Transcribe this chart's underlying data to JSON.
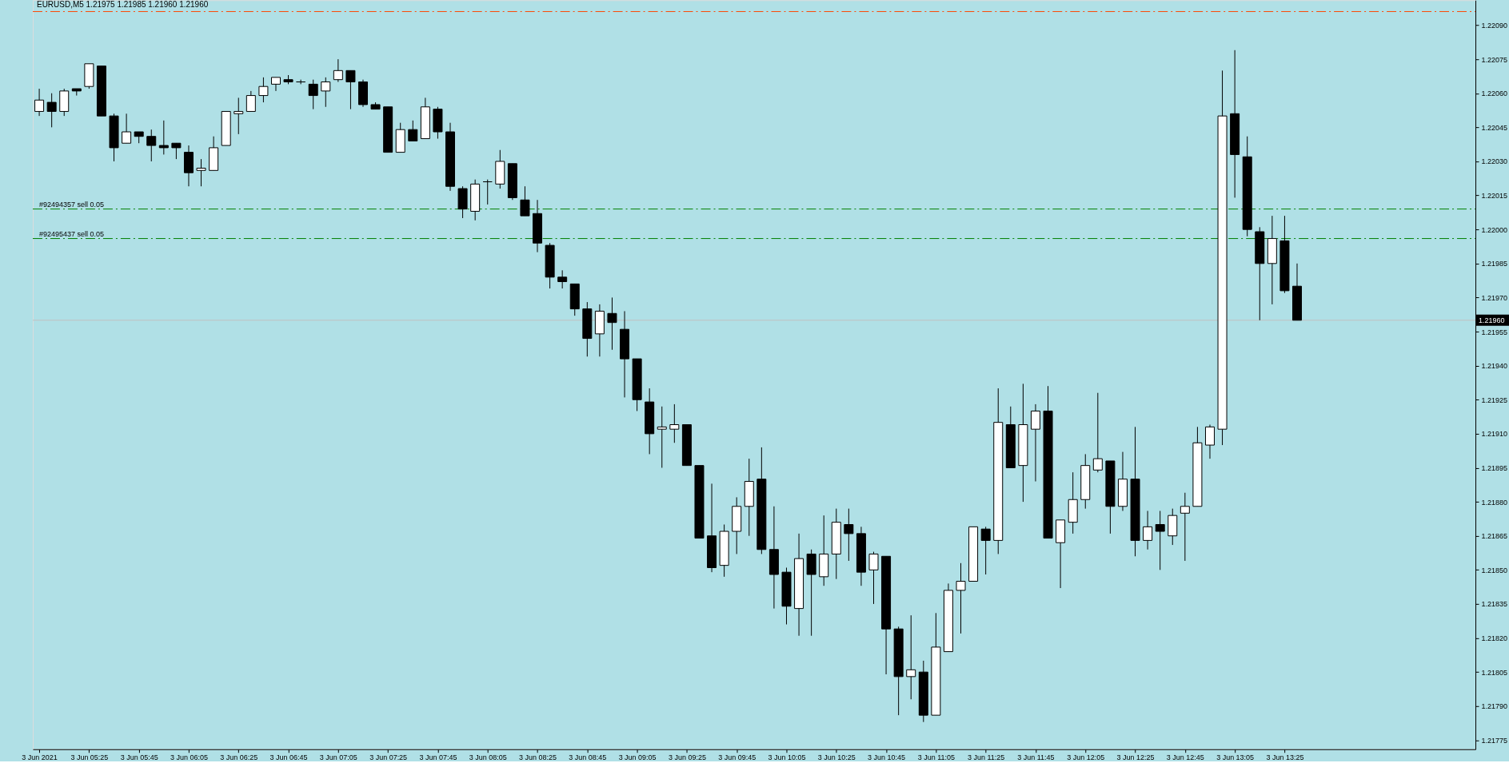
{
  "chart_data": {
    "type": "candlestick",
    "title": "EURUSD,M5 1.21975 1.21985 1.21960 1.21960",
    "x": [
      "2021-06-03T05:05",
      "2021-06-03T05:10",
      "2021-06-03T05:15",
      "2021-06-03T05:20",
      "2021-06-03T05:25",
      "2021-06-03T05:30",
      "2021-06-03T05:35",
      "2021-06-03T05:40",
      "2021-06-03T05:45",
      "2021-06-03T05:50",
      "2021-06-03T05:55",
      "2021-06-03T06:00",
      "2021-06-03T06:05",
      "2021-06-03T06:10",
      "2021-06-03T06:15",
      "2021-06-03T06:20",
      "2021-06-03T06:25",
      "2021-06-03T06:30",
      "2021-06-03T06:35",
      "2021-06-03T06:40",
      "2021-06-03T06:45",
      "2021-06-03T06:50",
      "2021-06-03T06:55",
      "2021-06-03T07:00",
      "2021-06-03T07:05",
      "2021-06-03T07:10",
      "2021-06-03T07:15",
      "2021-06-03T07:20",
      "2021-06-03T07:25",
      "2021-06-03T07:30",
      "2021-06-03T07:35",
      "2021-06-03T07:40",
      "2021-06-03T07:45",
      "2021-06-03T07:50",
      "2021-06-03T07:55",
      "2021-06-03T08:00",
      "2021-06-03T08:05",
      "2021-06-03T08:10",
      "2021-06-03T08:15",
      "2021-06-03T08:20",
      "2021-06-03T08:25",
      "2021-06-03T08:30",
      "2021-06-03T08:35",
      "2021-06-03T08:40",
      "2021-06-03T08:45",
      "2021-06-03T08:50",
      "2021-06-03T08:55",
      "2021-06-03T09:00",
      "2021-06-03T09:05",
      "2021-06-03T09:10",
      "2021-06-03T09:15",
      "2021-06-03T09:20",
      "2021-06-03T09:25",
      "2021-06-03T09:30",
      "2021-06-03T09:35",
      "2021-06-03T09:40",
      "2021-06-03T09:45",
      "2021-06-03T09:50",
      "2021-06-03T09:55",
      "2021-06-03T10:00",
      "2021-06-03T10:05",
      "2021-06-03T10:10",
      "2021-06-03T10:15",
      "2021-06-03T10:20",
      "2021-06-03T10:25",
      "2021-06-03T10:30",
      "2021-06-03T10:35",
      "2021-06-03T10:40",
      "2021-06-03T10:45",
      "2021-06-03T10:50",
      "2021-06-03T10:55",
      "2021-06-03T11:00",
      "2021-06-03T11:05",
      "2021-06-03T11:10",
      "2021-06-03T11:15",
      "2021-06-03T11:20",
      "2021-06-03T11:25",
      "2021-06-03T11:30",
      "2021-06-03T11:35",
      "2021-06-03T11:40",
      "2021-06-03T11:45",
      "2021-06-03T11:50",
      "2021-06-03T11:55",
      "2021-06-03T12:00",
      "2021-06-03T12:05",
      "2021-06-03T12:10",
      "2021-06-03T12:15",
      "2021-06-03T12:20",
      "2021-06-03T12:25",
      "2021-06-03T12:30",
      "2021-06-03T12:35",
      "2021-06-03T12:40",
      "2021-06-03T12:45",
      "2021-06-03T12:50",
      "2021-06-03T12:55",
      "2021-06-03T13:00",
      "2021-06-03T13:05",
      "2021-06-03T13:10",
      "2021-06-03T13:15",
      "2021-06-03T13:20",
      "2021-06-03T13:25",
      "2021-06-03T13:30"
    ],
    "ohlc": [
      [
        1.22052,
        1.22062,
        1.2205,
        1.22057
      ],
      [
        1.22056,
        1.2206,
        1.22045,
        1.22052
      ],
      [
        1.22052,
        1.22062,
        1.2205,
        1.22061
      ],
      [
        1.22062,
        1.22062,
        1.22059,
        1.22061
      ],
      [
        1.22063,
        1.22073,
        1.22062,
        1.22073
      ],
      [
        1.22072,
        1.22072,
        1.2205,
        1.2205
      ],
      [
        1.2205,
        1.22051,
        1.2203,
        1.22036
      ],
      [
        1.22038,
        1.22051,
        1.22038,
        1.22043
      ],
      [
        1.22043,
        1.22043,
        1.22038,
        1.22041
      ],
      [
        1.22041,
        1.22044,
        1.2203,
        1.22037
      ],
      [
        1.22037,
        1.22048,
        1.22033,
        1.22036
      ],
      [
        1.22038,
        1.22038,
        1.22031,
        1.22036
      ],
      [
        1.22034,
        1.22037,
        1.22019,
        1.22025
      ],
      [
        1.22026,
        1.22031,
        1.22019,
        1.22027
      ],
      [
        1.22026,
        1.22041,
        1.22026,
        1.22036
      ],
      [
        1.22037,
        1.22052,
        1.22037,
        1.22052
      ],
      [
        1.22051,
        1.22058,
        1.22042,
        1.22052
      ],
      [
        1.22052,
        1.22061,
        1.22052,
        1.22059
      ],
      [
        1.22059,
        1.22067,
        1.22056,
        1.22063
      ],
      [
        1.22064,
        1.22067,
        1.22061,
        1.22067
      ],
      [
        1.22066,
        1.22068,
        1.22064,
        1.22065
      ],
      [
        1.22065,
        1.22066,
        1.22064,
        1.22065
      ],
      [
        1.22064,
        1.22066,
        1.22053,
        1.22059
      ],
      [
        1.22061,
        1.22067,
        1.22054,
        1.22065
      ],
      [
        1.22066,
        1.22075,
        1.22065,
        1.2207
      ],
      [
        1.2207,
        1.2207,
        1.22053,
        1.22065
      ],
      [
        1.22065,
        1.22066,
        1.22054,
        1.22055
      ],
      [
        1.22055,
        1.22056,
        1.22053,
        1.22053
      ],
      [
        1.22054,
        1.22054,
        1.22034,
        1.22034
      ],
      [
        1.22034,
        1.22047,
        1.22034,
        1.22044
      ],
      [
        1.22044,
        1.22048,
        1.22039,
        1.22039
      ],
      [
        1.2204,
        1.22058,
        1.2204,
        1.22054
      ],
      [
        1.22053,
        1.22054,
        1.2204,
        1.22043
      ],
      [
        1.22043,
        1.22047,
        1.22017,
        1.22019
      ],
      [
        1.22018,
        1.22019,
        1.22005,
        1.22009
      ],
      [
        1.22008,
        1.22022,
        1.22004,
        1.2202
      ],
      [
        1.22021,
        1.22022,
        1.22011,
        1.22021
      ],
      [
        1.2202,
        1.22035,
        1.22018,
        1.2203
      ],
      [
        1.22029,
        1.22029,
        1.22013,
        1.22014
      ],
      [
        1.22013,
        1.22019,
        1.22006,
        1.22006
      ],
      [
        1.22007,
        1.22013,
        1.2199,
        1.21994
      ],
      [
        1.21993,
        1.21994,
        1.21974,
        1.21979
      ],
      [
        1.21979,
        1.21982,
        1.21974,
        1.21977
      ],
      [
        1.21976,
        1.21976,
        1.21962,
        1.21965
      ],
      [
        1.21965,
        1.21968,
        1.21944,
        1.21952
      ],
      [
        1.21954,
        1.21967,
        1.21944,
        1.21964
      ],
      [
        1.21963,
        1.2197,
        1.21947,
        1.21959
      ],
      [
        1.21956,
        1.21964,
        1.21926,
        1.21943
      ],
      [
        1.21943,
        1.21943,
        1.2192,
        1.21925
      ],
      [
        1.21924,
        1.2193,
        1.21901,
        1.2191
      ],
      [
        1.21912,
        1.21922,
        1.21895,
        1.21913
      ],
      [
        1.21912,
        1.21923,
        1.21906,
        1.21914
      ],
      [
        1.21914,
        1.21914,
        1.21896,
        1.21896
      ],
      [
        1.21896,
        1.21896,
        1.21864,
        1.21864
      ],
      [
        1.21865,
        1.21888,
        1.21849,
        1.21851
      ],
      [
        1.21852,
        1.2187,
        1.21847,
        1.21867
      ],
      [
        1.21867,
        1.21882,
        1.21857,
        1.21878
      ],
      [
        1.21878,
        1.21899,
        1.21865,
        1.21889
      ],
      [
        1.2189,
        1.21904,
        1.21857,
        1.21859
      ],
      [
        1.21859,
        1.21878,
        1.21833,
        1.21848
      ],
      [
        1.21849,
        1.21851,
        1.21826,
        1.21834
      ],
      [
        1.21833,
        1.21866,
        1.21821,
        1.21855
      ],
      [
        1.21857,
        1.21859,
        1.21821,
        1.21848
      ],
      [
        1.21847,
        1.21874,
        1.21843,
        1.21857
      ],
      [
        1.21857,
        1.21877,
        1.21846,
        1.21871
      ],
      [
        1.2187,
        1.21877,
        1.21854,
        1.21866
      ],
      [
        1.21866,
        1.21869,
        1.21843,
        1.21849
      ],
      [
        1.2185,
        1.21858,
        1.21835,
        1.21857
      ],
      [
        1.21856,
        1.21856,
        1.21804,
        1.21824
      ],
      [
        1.21824,
        1.21825,
        1.21786,
        1.21803
      ],
      [
        1.21803,
        1.2183,
        1.21793,
        1.21806
      ],
      [
        1.21805,
        1.2181,
        1.21783,
        1.21786
      ],
      [
        1.21786,
        1.21831,
        1.21786,
        1.21816
      ],
      [
        1.21814,
        1.21844,
        1.21814,
        1.21841
      ],
      [
        1.21841,
        1.21853,
        1.21822,
        1.21845
      ],
      [
        1.21845,
        1.21869,
        1.21845,
        1.21869
      ],
      [
        1.21868,
        1.21869,
        1.21848,
        1.21863
      ],
      [
        1.21863,
        1.2193,
        1.21857,
        1.21915
      ],
      [
        1.21914,
        1.21922,
        1.21895,
        1.21895
      ],
      [
        1.21896,
        1.21932,
        1.2188,
        1.21914
      ],
      [
        1.21912,
        1.21923,
        1.21889,
        1.2192
      ],
      [
        1.2192,
        1.21931,
        1.21864,
        1.21864
      ],
      [
        1.21862,
        1.21872,
        1.21842,
        1.21872
      ],
      [
        1.21871,
        1.21893,
        1.21866,
        1.21881
      ],
      [
        1.21881,
        1.21901,
        1.21877,
        1.21896
      ],
      [
        1.21894,
        1.21928,
        1.21893,
        1.21899
      ],
      [
        1.21898,
        1.21898,
        1.21866,
        1.21878
      ],
      [
        1.21878,
        1.21902,
        1.21876,
        1.2189
      ],
      [
        1.2189,
        1.21913,
        1.21856,
        1.21863
      ],
      [
        1.21863,
        1.21876,
        1.21859,
        1.21869
      ],
      [
        1.2187,
        1.21876,
        1.2185,
        1.21867
      ],
      [
        1.21865,
        1.21877,
        1.21861,
        1.21874
      ],
      [
        1.21875,
        1.21884,
        1.21854,
        1.21878
      ],
      [
        1.21878,
        1.21913,
        1.21878,
        1.21906
      ],
      [
        1.21905,
        1.21914,
        1.21899,
        1.21913
      ],
      [
        1.21912,
        1.2207,
        1.21905,
        1.2205
      ],
      [
        1.22051,
        1.22079,
        1.22014,
        1.22033
      ],
      [
        1.22032,
        1.22041,
        1.21997,
        1.22
      ],
      [
        1.21999,
        1.22001,
        1.2196,
        1.21985
      ],
      [
        1.21985,
        1.22006,
        1.21967,
        1.21996
      ],
      [
        1.21995,
        1.22006,
        1.21972,
        1.21973
      ],
      [
        1.21975,
        1.21985,
        1.2196,
        1.2196
      ]
    ],
    "xlim": [
      "2021-06-03T05:04",
      "2021-06-03T14:40"
    ],
    "xticks": [
      {
        "value": "2021-06-03T05:05",
        "label": "3 Jun 2021"
      },
      {
        "value": "2021-06-03T05:25",
        "label": "3 Jun 05:25"
      },
      {
        "value": "2021-06-03T05:45",
        "label": "3 Jun 05:45"
      },
      {
        "value": "2021-06-03T06:05",
        "label": "3 Jun 06:05"
      },
      {
        "value": "2021-06-03T06:25",
        "label": "3 Jun 06:25"
      },
      {
        "value": "2021-06-03T06:45",
        "label": "3 Jun 06:45"
      },
      {
        "value": "2021-06-03T07:05",
        "label": "3 Jun 07:05"
      },
      {
        "value": "2021-06-03T07:25",
        "label": "3 Jun 07:25"
      },
      {
        "value": "2021-06-03T07:45",
        "label": "3 Jun 07:45"
      },
      {
        "value": "2021-06-03T08:05",
        "label": "3 Jun 08:05"
      },
      {
        "value": "2021-06-03T08:25",
        "label": "3 Jun 08:25"
      },
      {
        "value": "2021-06-03T08:45",
        "label": "3 Jun 08:45"
      },
      {
        "value": "2021-06-03T09:05",
        "label": "3 Jun 09:05"
      },
      {
        "value": "2021-06-03T09:25",
        "label": "3 Jun 09:25"
      },
      {
        "value": "2021-06-03T09:45",
        "label": "3 Jun 09:45"
      },
      {
        "value": "2021-06-03T10:05",
        "label": "3 Jun 10:05"
      },
      {
        "value": "2021-06-03T10:25",
        "label": "3 Jun 10:25"
      },
      {
        "value": "2021-06-03T10:45",
        "label": "3 Jun 10:45"
      },
      {
        "value": "2021-06-03T11:05",
        "label": "3 Jun 11:05"
      },
      {
        "value": "2021-06-03T11:25",
        "label": "3 Jun 11:25"
      },
      {
        "value": "2021-06-03T11:45",
        "label": "3 Jun 11:45"
      },
      {
        "value": "2021-06-03T12:05",
        "label": "3 Jun 12:05"
      },
      {
        "value": "2021-06-03T12:25",
        "label": "3 Jun 12:25"
      },
      {
        "value": "2021-06-03T12:45",
        "label": "3 Jun 12:45"
      },
      {
        "value": "2021-06-03T13:05",
        "label": "3 Jun 13:05"
      },
      {
        "value": "2021-06-03T13:25",
        "label": "3 Jun 13:25"
      }
    ],
    "ylim": [
      1.21771,
      1.22101
    ],
    "yticks": [
      {
        "value": 1.2209,
        "label": "1.22090"
      },
      1.22075,
      {
        "value": 1.2206,
        "label": "1.22060"
      },
      1.22045,
      {
        "value": 1.2203,
        "label": "1.22030"
      },
      1.22015,
      {
        "value": 1.22,
        "label": "1.22000"
      },
      1.21985,
      {
        "value": 1.2197,
        "label": "1.21970"
      },
      1.21955,
      {
        "value": 1.2194,
        "label": "1.21940"
      },
      1.21925,
      {
        "value": 1.2191,
        "label": "1.21910"
      },
      1.21895,
      {
        "value": 1.2188,
        "label": "1.21880"
      },
      1.21865,
      {
        "value": 1.2185,
        "label": "1.21850"
      },
      1.21835,
      {
        "value": 1.2182,
        "label": "1.21820"
      },
      1.21805,
      {
        "value": 1.2179,
        "label": "1.21790"
      },
      1.21775
    ],
    "ref_lines": [
      {
        "axis": "y",
        "value": 1.22096,
        "color": "#ff4500",
        "line_style": "dashed"
      },
      {
        "axis": "y",
        "value": 1.22009,
        "label": "#92494357 sell 0.05",
        "color": "#008000",
        "line_style": "dashed"
      },
      {
        "axis": "y",
        "value": 1.21996,
        "label": "#92495437 sell 0.05",
        "color": "#008000",
        "line_style": "dashed"
      },
      {
        "axis": "y",
        "value": 1.2196,
        "label": "1.21960",
        "color": "#c0c0c0",
        "line_style": "solid"
      }
    ],
    "grid": false
  }
}
